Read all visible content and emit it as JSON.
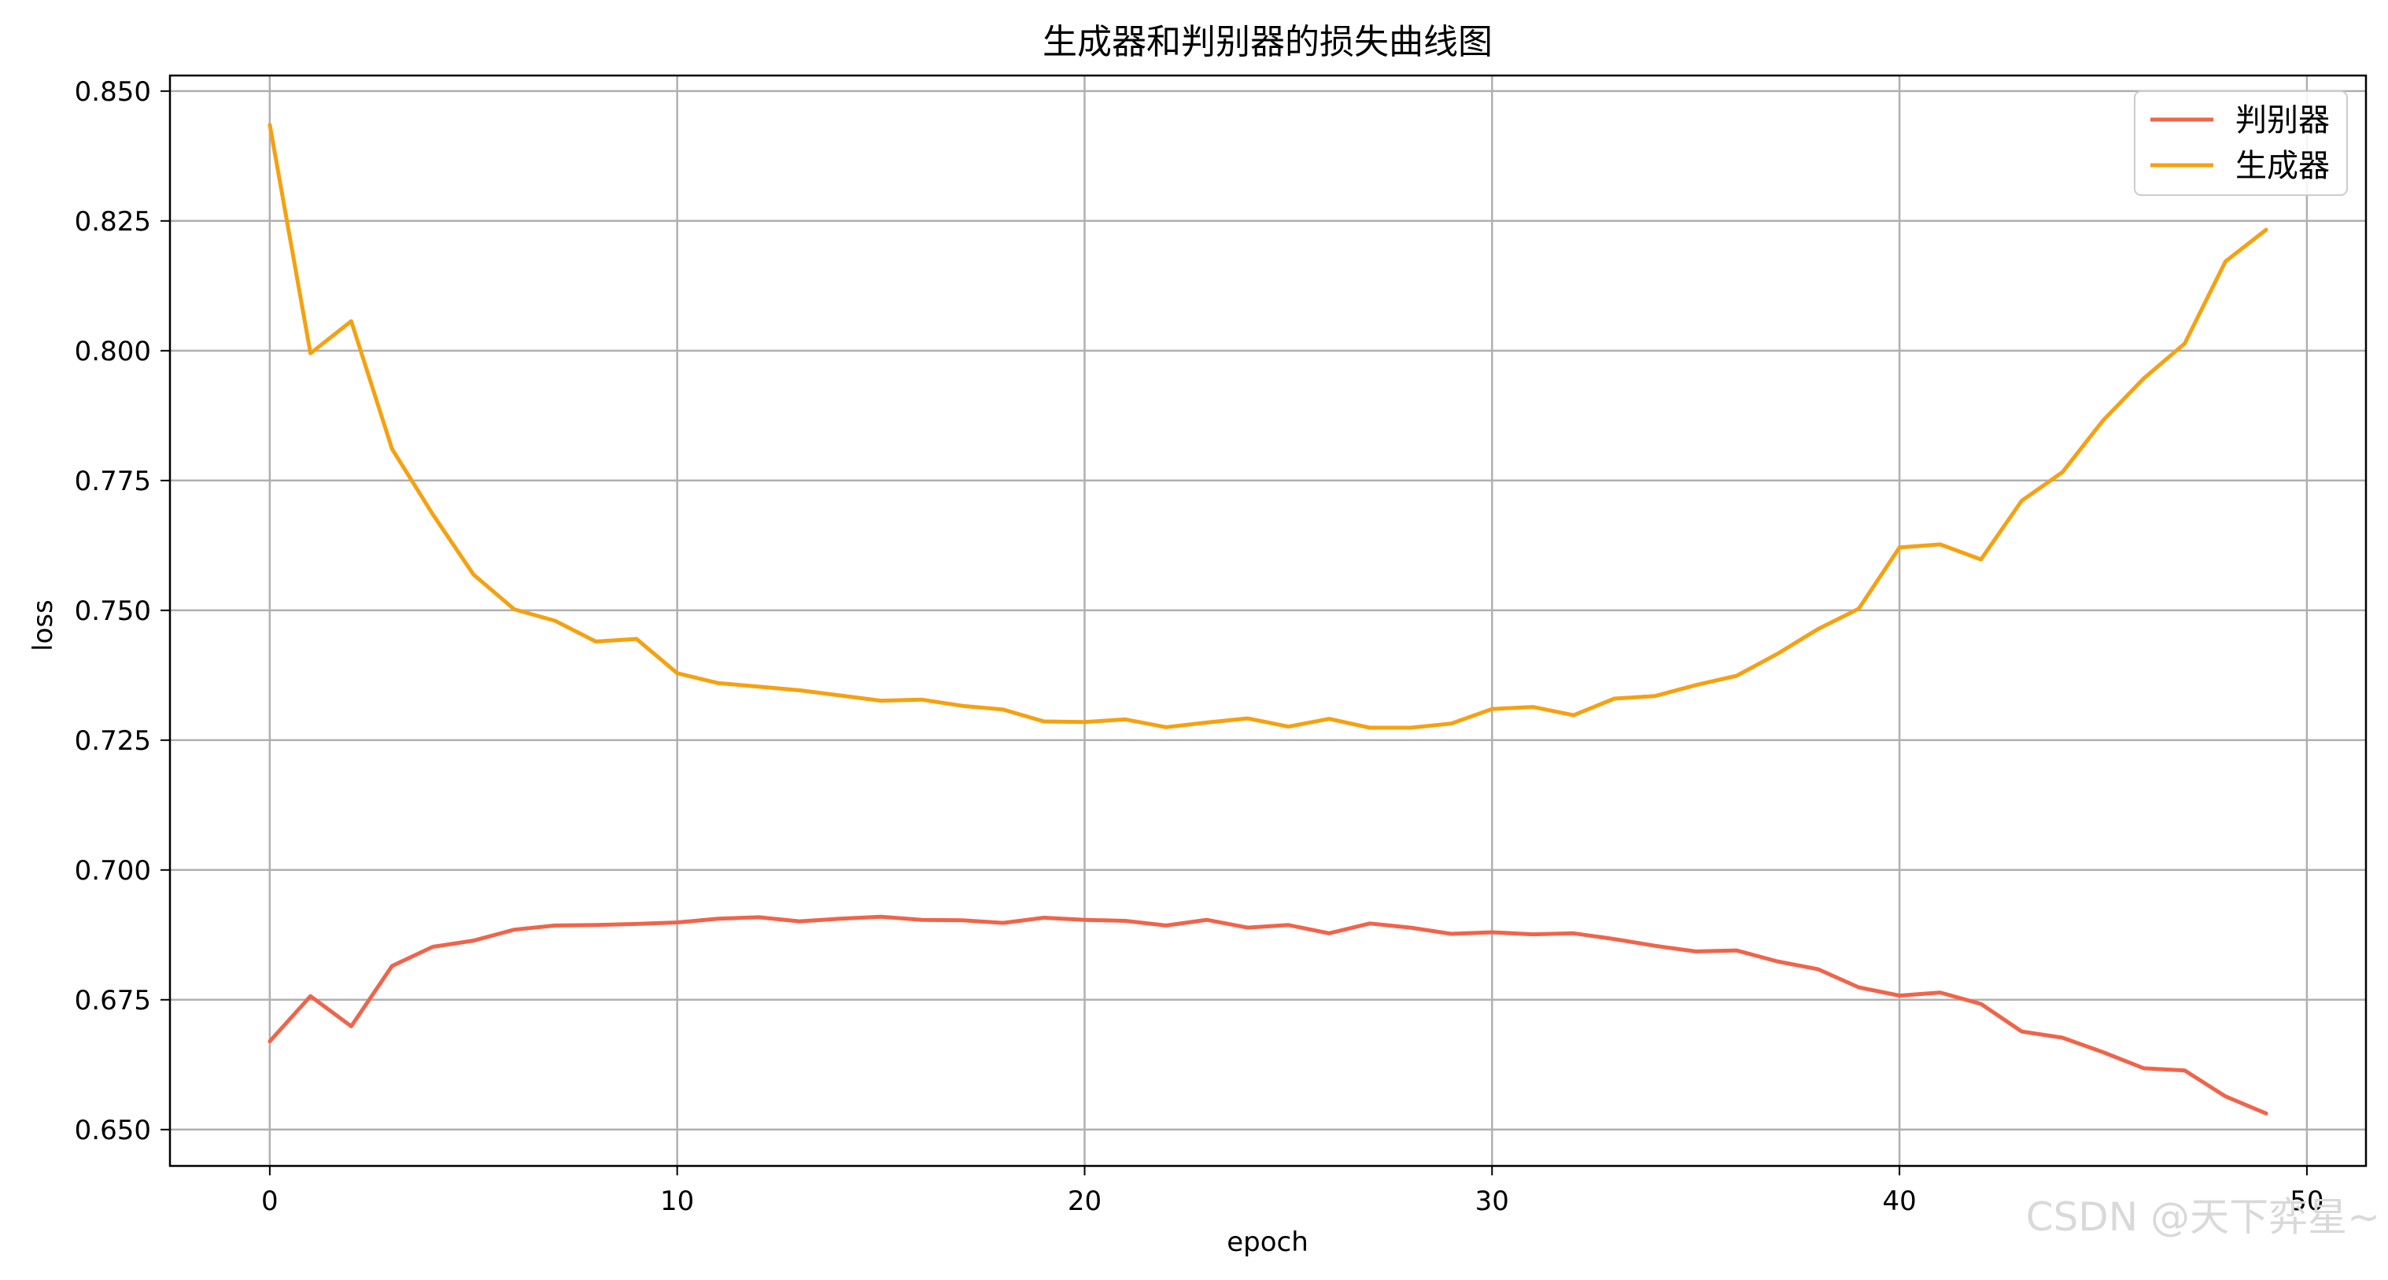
{
  "chart_data": {
    "type": "line",
    "title": "生成器和判别器的损失曲线图",
    "xlabel": "epoch",
    "ylabel": "loss",
    "x": [
      0,
      1,
      2,
      3,
      4,
      5,
      6,
      7,
      8,
      9,
      10,
      11,
      12,
      13,
      14,
      15,
      16,
      17,
      18,
      19,
      20,
      21,
      22,
      23,
      24,
      25,
      26,
      27,
      28,
      29,
      30,
      31,
      32,
      33,
      34,
      35,
      36,
      37,
      38,
      39,
      40,
      41,
      42,
      43,
      44,
      45,
      46,
      47,
      48,
      49
    ],
    "xlim": [
      -2.45,
      51.45
    ],
    "ylim": [
      0.643,
      0.853
    ],
    "xticks": [
      0,
      10,
      20,
      30,
      40,
      50
    ],
    "yticks": [
      0.65,
      0.675,
      0.7,
      0.725,
      0.75,
      0.775,
      0.8,
      0.825,
      0.85
    ],
    "ytick_labels": [
      "0.650",
      "0.675",
      "0.700",
      "0.725",
      "0.750",
      "0.775",
      "0.800",
      "0.825",
      "0.850"
    ],
    "grid": true,
    "legend_position": "top-right",
    "series": [
      {
        "name": "判别器",
        "color": "#f0644a",
        "values": [
          0.667,
          0.6757,
          0.6699,
          0.6815,
          0.6852,
          0.6864,
          0.6885,
          0.6893,
          0.6894,
          0.6896,
          0.6899,
          0.6906,
          0.6909,
          0.6901,
          0.6906,
          0.691,
          0.6904,
          0.6903,
          0.6898,
          0.6908,
          0.6904,
          0.6902,
          0.6893,
          0.6904,
          0.6889,
          0.6894,
          0.6878,
          0.6897,
          0.6889,
          0.6877,
          0.688,
          0.6876,
          0.6878,
          0.6867,
          0.6854,
          0.6843,
          0.6845,
          0.6824,
          0.6809,
          0.6774,
          0.6758,
          0.6764,
          0.6742,
          0.6689,
          0.6677,
          0.6649,
          0.6618,
          0.6614,
          0.6564,
          0.6531
        ]
      },
      {
        "name": "生成器",
        "color": "#f5a111",
        "values": [
          0.8435,
          0.7995,
          0.8057,
          0.7811,
          0.7685,
          0.7569,
          0.7502,
          0.748,
          0.744,
          0.7445,
          0.7379,
          0.736,
          0.7353,
          0.7346,
          0.7336,
          0.7326,
          0.7328,
          0.7316,
          0.7309,
          0.7286,
          0.7285,
          0.729,
          0.7275,
          0.7284,
          0.7292,
          0.7276,
          0.7291,
          0.7274,
          0.7274,
          0.7282,
          0.731,
          0.7314,
          0.7298,
          0.733,
          0.7335,
          0.7356,
          0.7374,
          0.7416,
          0.7464,
          0.7503,
          0.7621,
          0.7627,
          0.7598,
          0.7711,
          0.7766,
          0.7866,
          0.7947,
          0.8014,
          0.8172,
          0.8233
        ]
      }
    ]
  },
  "watermark": "CSDN @天下弈星~"
}
